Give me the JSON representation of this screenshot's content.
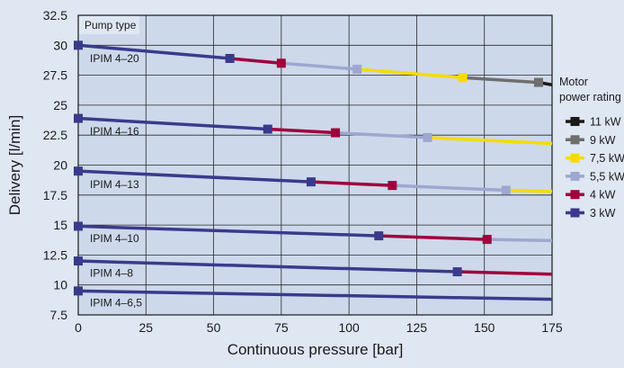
{
  "chart_data": {
    "type": "line",
    "xlabel": "Continuous pressure [bar]",
    "ylabel": "Delivery [l/min]",
    "xlim": [
      0,
      175
    ],
    "ylim": [
      7.5,
      32.5
    ],
    "x_ticks": [
      "0",
      "25",
      "50",
      "75",
      "100",
      "125",
      "150",
      "175"
    ],
    "y_ticks": [
      "7.5",
      "10",
      "12.5",
      "15",
      "17.5",
      "20",
      "22.5",
      "25",
      "27.5",
      "30",
      "32.5"
    ],
    "grid": true,
    "pump_type_heading": "Pump type",
    "legend_title": "Motor\npower rating",
    "legend_placement": "right",
    "legend": [
      {
        "label": "11 kW",
        "color": "#1a1a1a"
      },
      {
        "label": "9 kW",
        "color": "#6e6e6e"
      },
      {
        "label": "7,5 kW",
        "color": "#f5dc00"
      },
      {
        "label": "5,5 kW",
        "color": "#9fa7d0"
      },
      {
        "label": "4 kW",
        "color": "#a0003c"
      },
      {
        "label": "3 kW",
        "color": "#3a3a8c"
      }
    ],
    "series": [
      {
        "name": "IPIM 4–20",
        "label_x": 3,
        "label_y": 28.9,
        "segments": [
          {
            "power": "3 kW",
            "color": "#3a3a8c",
            "x": [
              0,
              56
            ],
            "y": [
              30,
              28.9
            ]
          },
          {
            "power": "4 kW",
            "color": "#a0003c",
            "x": [
              56,
              75
            ],
            "y": [
              28.9,
              28.5
            ]
          },
          {
            "power": "5,5 kW",
            "color": "#9fa7d0",
            "x": [
              75,
              103
            ],
            "y": [
              28.5,
              28.0
            ]
          },
          {
            "power": "7,5 kW",
            "color": "#f5dc00",
            "x": [
              103,
              142
            ],
            "y": [
              28.0,
              27.3
            ]
          },
          {
            "power": "9 kW",
            "color": "#6e6e6e",
            "x": [
              142,
              170
            ],
            "y": [
              27.3,
              26.9
            ]
          },
          {
            "power": "11 kW",
            "color": "#1a1a1a",
            "x": [
              170,
              175
            ],
            "y": [
              26.9,
              26.7
            ]
          }
        ],
        "markers": [
          {
            "x": 0,
            "y": 30,
            "color": "#3a3a8c"
          },
          {
            "x": 56,
            "y": 28.9,
            "color": "#3a3a8c"
          },
          {
            "x": 75,
            "y": 28.5,
            "color": "#a0003c"
          },
          {
            "x": 103,
            "y": 28.0,
            "color": "#9fa7d0"
          },
          {
            "x": 142,
            "y": 27.3,
            "color": "#f5dc00"
          },
          {
            "x": 170,
            "y": 26.9,
            "color": "#6e6e6e"
          }
        ]
      },
      {
        "name": "IPIM 4–16",
        "label_x": 3,
        "label_y": 22.8,
        "segments": [
          {
            "power": "3 kW",
            "color": "#3a3a8c",
            "x": [
              0,
              70
            ],
            "y": [
              23.9,
              23.0
            ]
          },
          {
            "power": "4 kW",
            "color": "#a0003c",
            "x": [
              70,
              95
            ],
            "y": [
              23.0,
              22.7
            ]
          },
          {
            "power": "5,5 kW",
            "color": "#9fa7d0",
            "x": [
              95,
              129
            ],
            "y": [
              22.7,
              22.3
            ]
          },
          {
            "power": "7,5 kW",
            "color": "#f5dc00",
            "x": [
              129,
              175
            ],
            "y": [
              22.3,
              21.8
            ]
          }
        ],
        "markers": [
          {
            "x": 0,
            "y": 23.9,
            "color": "#3a3a8c"
          },
          {
            "x": 70,
            "y": 23.0,
            "color": "#3a3a8c"
          },
          {
            "x": 95,
            "y": 22.7,
            "color": "#a0003c"
          },
          {
            "x": 129,
            "y": 22.3,
            "color": "#9fa7d0"
          }
        ]
      },
      {
        "name": "IPIM 4–13",
        "label_x": 3,
        "label_y": 18.4,
        "segments": [
          {
            "power": "3 kW",
            "color": "#3a3a8c",
            "x": [
              0,
              86
            ],
            "y": [
              19.5,
              18.6
            ]
          },
          {
            "power": "4 kW",
            "color": "#a0003c",
            "x": [
              86,
              116
            ],
            "y": [
              18.6,
              18.3
            ]
          },
          {
            "power": "5,5 kW",
            "color": "#9fa7d0",
            "x": [
              116,
              158
            ],
            "y": [
              18.3,
              17.9
            ]
          },
          {
            "power": "7,5 kW",
            "color": "#f5dc00",
            "x": [
              158,
              175
            ],
            "y": [
              17.9,
              17.8
            ]
          }
        ],
        "markers": [
          {
            "x": 0,
            "y": 19.5,
            "color": "#3a3a8c"
          },
          {
            "x": 86,
            "y": 18.6,
            "color": "#3a3a8c"
          },
          {
            "x": 116,
            "y": 18.3,
            "color": "#a0003c"
          },
          {
            "x": 158,
            "y": 17.9,
            "color": "#9fa7d0"
          }
        ]
      },
      {
        "name": "IPIM 4–10",
        "label_x": 3,
        "label_y": 13.9,
        "segments": [
          {
            "power": "3 kW",
            "color": "#3a3a8c",
            "x": [
              0,
              111
            ],
            "y": [
              14.9,
              14.1
            ]
          },
          {
            "power": "4 kW",
            "color": "#a0003c",
            "x": [
              111,
              151
            ],
            "y": [
              14.1,
              13.8
            ]
          },
          {
            "power": "5,5 kW",
            "color": "#9fa7d0",
            "x": [
              151,
              175
            ],
            "y": [
              13.8,
              13.7
            ]
          }
        ],
        "markers": [
          {
            "x": 0,
            "y": 14.9,
            "color": "#3a3a8c"
          },
          {
            "x": 111,
            "y": 14.1,
            "color": "#3a3a8c"
          },
          {
            "x": 151,
            "y": 13.8,
            "color": "#a0003c"
          }
        ]
      },
      {
        "name": "IPIM 4–8",
        "label_x": 3,
        "label_y": 11.0,
        "segments": [
          {
            "power": "3 kW",
            "color": "#3a3a8c",
            "x": [
              0,
              140
            ],
            "y": [
              12.0,
              11.1
            ]
          },
          {
            "power": "4 kW",
            "color": "#a0003c",
            "x": [
              140,
              175
            ],
            "y": [
              11.1,
              10.9
            ]
          }
        ],
        "markers": [
          {
            "x": 0,
            "y": 12.0,
            "color": "#3a3a8c"
          },
          {
            "x": 140,
            "y": 11.1,
            "color": "#3a3a8c"
          }
        ]
      },
      {
        "name": "IPIM 4–6,5",
        "label_x": 3,
        "label_y": 8.5,
        "segments": [
          {
            "power": "3 kW",
            "color": "#3a3a8c",
            "x": [
              0,
              175
            ],
            "y": [
              9.5,
              8.8
            ]
          }
        ],
        "markers": [
          {
            "x": 0,
            "y": 9.5,
            "color": "#3a3a8c"
          }
        ]
      }
    ]
  }
}
